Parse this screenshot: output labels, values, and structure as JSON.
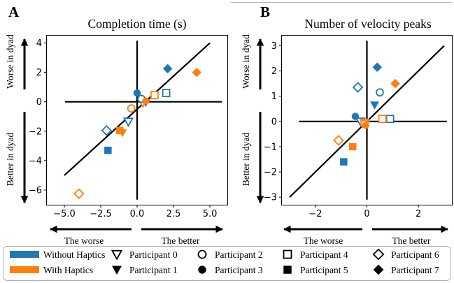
{
  "colors": {
    "blue": "#1f77b4",
    "orange": "#ff7f0e",
    "black": "#000000"
  },
  "y_arrow_labels": {
    "top": "Worse in dyad",
    "bottom": "Better in dyad"
  },
  "x_arrow_labels": {
    "left": "The worse",
    "right": "The better"
  },
  "legend": {
    "conditions": [
      {
        "label": "Without Haptics",
        "color": "#1f77b4"
      },
      {
        "label": "With Haptics",
        "color": "#ff7f0e"
      }
    ],
    "participants": [
      {
        "label": "Participant 0",
        "marker": "triangle-down-open"
      },
      {
        "label": "Participant 1",
        "marker": "triangle-down-filled"
      },
      {
        "label": "Participant 2",
        "marker": "circle-open"
      },
      {
        "label": "Participant 3",
        "marker": "circle-filled"
      },
      {
        "label": "Participant 4",
        "marker": "square-open"
      },
      {
        "label": "Participant 5",
        "marker": "square-filled"
      },
      {
        "label": "Participant 6",
        "marker": "diamond-open"
      },
      {
        "label": "Participant 7",
        "marker": "diamond-filled"
      }
    ]
  },
  "chart_data": [
    {
      "type": "scatter",
      "panel_letter": "A",
      "title": "Completion time (s)",
      "xlim": [
        -6.2,
        6.2
      ],
      "ylim": [
        -7.0,
        4.5
      ],
      "xticks": [
        -5.0,
        -2.5,
        0.0,
        2.5,
        5.0
      ],
      "xtick_labels": [
        "−5.0",
        "−2.5",
        "0.0",
        "2.5",
        "5.0"
      ],
      "yticks": [
        -6,
        -4,
        -2,
        0,
        2,
        4
      ],
      "ytick_labels": [
        "−6",
        "−4",
        "−2",
        "0",
        "2",
        "4"
      ],
      "reference_line": {
        "x": [
          -5,
          5
        ],
        "y": [
          -5,
          4
        ]
      },
      "zero_lines": true,
      "points": [
        {
          "participant": 0,
          "condition": "Without Haptics",
          "x": -0.6,
          "y": -1.35
        },
        {
          "participant": 0,
          "condition": "With Haptics",
          "x": 0.4,
          "y": -0.05
        },
        {
          "participant": 1,
          "condition": "Without Haptics",
          "x": 0.6,
          "y": -0.05
        },
        {
          "participant": 1,
          "condition": "With Haptics",
          "x": -1.0,
          "y": -2.1
        },
        {
          "participant": 2,
          "condition": "Without Haptics",
          "x": 0.3,
          "y": 0.2
        },
        {
          "participant": 2,
          "condition": "With Haptics",
          "x": -0.4,
          "y": -0.45
        },
        {
          "participant": 3,
          "condition": "Without Haptics",
          "x": 0.0,
          "y": 0.6
        },
        {
          "participant": 3,
          "condition": "With Haptics",
          "x": 0.6,
          "y": 0.05
        },
        {
          "participant": 4,
          "condition": "Without Haptics",
          "x": 2.0,
          "y": 0.6
        },
        {
          "participant": 4,
          "condition": "With Haptics",
          "x": 1.2,
          "y": 0.45
        },
        {
          "participant": 5,
          "condition": "Without Haptics",
          "x": -2.0,
          "y": -3.3
        },
        {
          "participant": 5,
          "condition": "With Haptics",
          "x": -1.2,
          "y": -1.95
        },
        {
          "participant": 6,
          "condition": "Without Haptics",
          "x": -2.1,
          "y": -1.95
        },
        {
          "participant": 6,
          "condition": "With Haptics",
          "x": -4.0,
          "y": -6.25
        },
        {
          "participant": 7,
          "condition": "Without Haptics",
          "x": 2.1,
          "y": 2.25
        },
        {
          "participant": 7,
          "condition": "With Haptics",
          "x": 4.1,
          "y": 2.0
        }
      ]
    },
    {
      "type": "scatter",
      "panel_letter": "B",
      "title": "Number of velocity peaks",
      "xlim": [
        -3.3,
        3.3
      ],
      "ylim": [
        -3.3,
        3.4
      ],
      "xticks": [
        -2,
        0,
        2
      ],
      "xtick_labels": [
        "−2",
        "0",
        "2"
      ],
      "yticks": [
        -3,
        -2,
        -1,
        0,
        1,
        2,
        3
      ],
      "ytick_labels": [
        "−3",
        "−2",
        "−1",
        "0",
        "1",
        "2",
        "3"
      ],
      "reference_line": {
        "x": [
          -3,
          3
        ],
        "y": [
          -3,
          3
        ]
      },
      "zero_lines": true,
      "points": [
        {
          "participant": 0,
          "condition": "Without Haptics",
          "x": -0.25,
          "y": 0.0
        },
        {
          "participant": 0,
          "condition": "With Haptics",
          "x": -0.1,
          "y": -0.05
        },
        {
          "participant": 1,
          "condition": "Without Haptics",
          "x": 0.3,
          "y": 0.65
        },
        {
          "participant": 1,
          "condition": "With Haptics",
          "x": -0.05,
          "y": -0.1
        },
        {
          "participant": 2,
          "condition": "Without Haptics",
          "x": 0.5,
          "y": 1.15
        },
        {
          "participant": 2,
          "condition": "With Haptics",
          "x": -0.1,
          "y": -0.1
        },
        {
          "participant": 3,
          "condition": "Without Haptics",
          "x": -0.45,
          "y": 0.2
        },
        {
          "participant": 3,
          "condition": "With Haptics",
          "x": -0.05,
          "y": -0.15
        },
        {
          "participant": 4,
          "condition": "Without Haptics",
          "x": 0.9,
          "y": 0.1
        },
        {
          "participant": 4,
          "condition": "With Haptics",
          "x": 0.6,
          "y": 0.1
        },
        {
          "participant": 5,
          "condition": "Without Haptics",
          "x": -0.9,
          "y": -1.6
        },
        {
          "participant": 5,
          "condition": "With Haptics",
          "x": -0.55,
          "y": -1.0
        },
        {
          "participant": 6,
          "condition": "Without Haptics",
          "x": -0.35,
          "y": 1.35
        },
        {
          "participant": 6,
          "condition": "With Haptics",
          "x": -1.1,
          "y": -0.75
        },
        {
          "participant": 7,
          "condition": "Without Haptics",
          "x": 0.4,
          "y": 2.15
        },
        {
          "participant": 7,
          "condition": "With Haptics",
          "x": 1.1,
          "y": 1.5
        }
      ]
    }
  ]
}
